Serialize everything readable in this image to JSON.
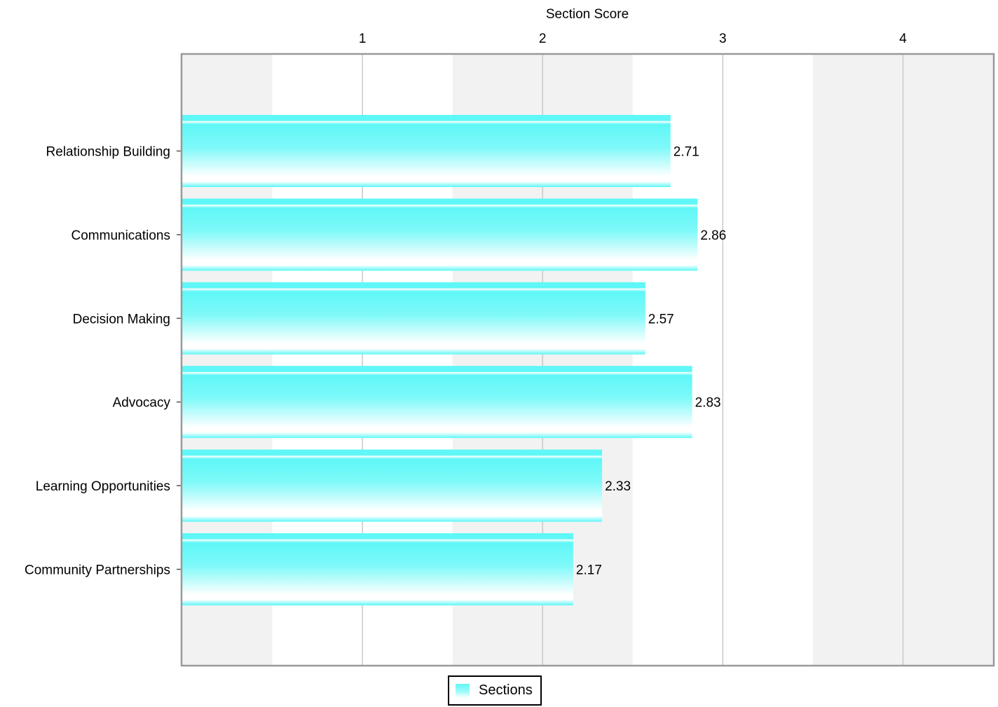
{
  "chart_data": {
    "type": "bar",
    "orientation": "horizontal",
    "title": "",
    "xlabel": "Section Score",
    "xaxis_position": "top",
    "ylabel": "",
    "xlim": [
      0,
      4.5
    ],
    "xticks": [
      1,
      2,
      3,
      4
    ],
    "grid": true,
    "legend_position": "bottom-center",
    "categories": [
      "Relationship Building",
      "Communications",
      "Decision Making",
      "Advocacy",
      "Learning Opportunities",
      "Community Partnerships"
    ],
    "series": [
      {
        "name": "Sections",
        "values": [
          2.71,
          2.86,
          2.57,
          2.83,
          2.33,
          2.17
        ],
        "labels": [
          "2.71",
          "2.86",
          "2.57",
          "2.83",
          "2.33",
          "2.17"
        ],
        "color": "#5ff7f7"
      }
    ],
    "bands": [
      "#f2f2f2",
      "#ffffff",
      "#f2f2f2",
      "#ffffff",
      "#f2f2f2"
    ],
    "gridline_color": "#c8c8c8",
    "axis_color": "#999999"
  }
}
